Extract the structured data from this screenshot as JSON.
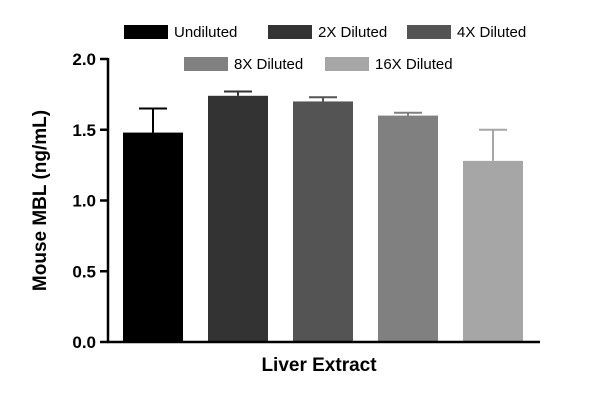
{
  "chart_data": {
    "type": "bar",
    "categories": [
      "Liver Extract"
    ],
    "xlabel": "Liver Extract",
    "ylabel": "Mouse MBL (ng/mL)",
    "ylim": [
      0,
      2.0
    ],
    "yticks": [
      "0.0",
      "0.5",
      "1.0",
      "1.5",
      "2.0"
    ],
    "grid": false,
    "legend_position": "top",
    "series": [
      {
        "name": "Undiluted",
        "values": [
          1.48
        ],
        "error": [
          0.17
        ],
        "color": "#000000"
      },
      {
        "name": "2X Diluted",
        "values": [
          1.74
        ],
        "error": [
          0.03
        ],
        "color": "#333333"
      },
      {
        "name": "4X Diluted",
        "values": [
          1.7
        ],
        "error": [
          0.03
        ],
        "color": "#545454"
      },
      {
        "name": "8X Diluted",
        "values": [
          1.6
        ],
        "error": [
          0.02
        ],
        "color": "#808080"
      },
      {
        "name": "16X Diluted",
        "values": [
          1.28
        ],
        "error": [
          0.22
        ],
        "color": "#a6a6a6"
      }
    ]
  }
}
